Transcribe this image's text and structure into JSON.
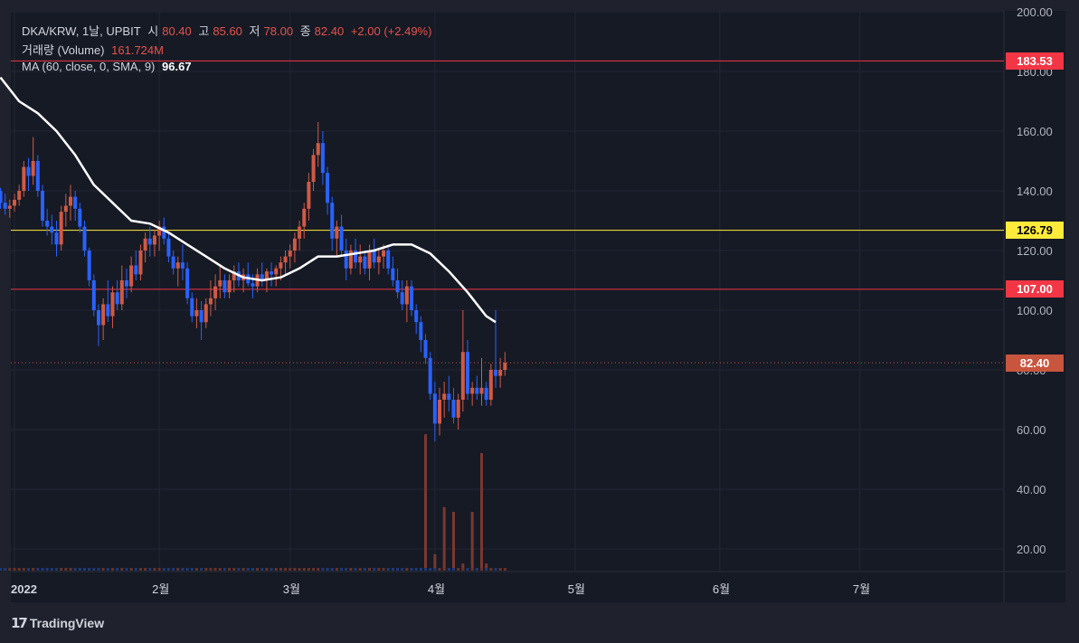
{
  "symbol_line": {
    "symbol": "DKA/KRW, 1날, UPBIT",
    "open_label": "시",
    "open_value": "80.40",
    "high_label": "고",
    "high_value": "85.60",
    "low_label": "저",
    "low_value": "78.00",
    "close_label": "종",
    "close_value": "82.40",
    "change": "+2.00 (+2.49%)"
  },
  "volume_line": {
    "label": "거래량 (Volume)",
    "value": "161.724M"
  },
  "ma_line": {
    "label": "MA (60, close, 0, SMA, 9)",
    "value": "96.67"
  },
  "price_tags": [
    {
      "label": "183.53",
      "color": "#f23645"
    },
    {
      "label": "126.79",
      "color": "#ffeb3b"
    },
    {
      "label": "107.00",
      "color": "#f23645"
    },
    {
      "label": "82.40",
      "color": "#c8553d"
    }
  ],
  "colors": {
    "up": "#d05a45",
    "down": "#2962ff",
    "ma": "#ffffff",
    "bg": "#161a25"
  },
  "footer": {
    "brand": "TradingView",
    "icon": "tradingview-logo-icon"
  },
  "chart_data": {
    "type": "candlestick",
    "ylim": [
      13,
      200
    ],
    "y_ticks": [
      "200.00",
      "180.00",
      "160.00",
      "140.00",
      "120.00",
      "100.00",
      "80.00",
      "60.00",
      "40.00",
      "20.00"
    ],
    "y_tick_values": [
      200,
      180,
      160,
      140,
      120,
      100,
      80,
      60,
      40,
      20
    ],
    "x_ticks": [
      "2022",
      "2월",
      "3월",
      "4월",
      "5월",
      "6월",
      "7월"
    ],
    "x_tick_days": [
      0,
      31,
      59,
      90,
      120,
      151,
      181
    ],
    "horizontal_lines": [
      {
        "value": 183.53,
        "color": "#f23645"
      },
      {
        "value": 126.79,
        "color": "#ffeb3b"
      },
      {
        "value": 107.0,
        "color": "#f23645"
      }
    ],
    "last_price": 82.4,
    "candles": [
      [
        -3,
        140,
        141,
        134,
        136
      ],
      [
        -2,
        136,
        139,
        132,
        134
      ],
      [
        -1,
        134,
        137,
        131,
        135
      ],
      [
        0,
        135,
        139,
        133,
        137
      ],
      [
        1,
        137,
        142,
        135,
        140
      ],
      [
        2,
        140,
        150,
        138,
        148
      ],
      [
        3,
        148,
        151,
        140,
        145
      ],
      [
        4,
        145,
        158,
        142,
        150
      ],
      [
        5,
        150,
        152,
        138,
        140
      ],
      [
        6,
        140,
        142,
        128,
        130
      ],
      [
        7,
        130,
        134,
        125,
        128
      ],
      [
        8,
        128,
        132,
        122,
        126
      ],
      [
        9,
        126,
        130,
        118,
        122
      ],
      [
        10,
        122,
        135,
        120,
        133
      ],
      [
        11,
        133,
        139,
        128,
        135
      ],
      [
        12,
        135,
        142,
        130,
        138
      ],
      [
        13,
        138,
        140,
        130,
        134
      ],
      [
        14,
        134,
        136,
        126,
        128
      ],
      [
        15,
        128,
        130,
        118,
        120
      ],
      [
        16,
        120,
        121,
        108,
        110
      ],
      [
        17,
        110,
        112,
        98,
        100
      ],
      [
        18,
        100,
        102,
        88,
        95
      ],
      [
        19,
        95,
        104,
        90,
        102
      ],
      [
        20,
        102,
        110,
        96,
        98
      ],
      [
        21,
        98,
        108,
        94,
        106
      ],
      [
        22,
        106,
        110,
        100,
        102
      ],
      [
        23,
        102,
        115,
        100,
        110
      ],
      [
        24,
        110,
        114,
        104,
        108
      ],
      [
        25,
        108,
        118,
        106,
        115
      ],
      [
        26,
        115,
        120,
        110,
        112
      ],
      [
        27,
        112,
        122,
        110,
        120
      ],
      [
        28,
        120,
        126,
        116,
        124
      ],
      [
        29,
        124,
        128,
        118,
        122
      ],
      [
        30,
        122,
        127,
        118,
        125
      ],
      [
        31,
        125,
        130,
        120,
        128
      ],
      [
        32,
        128,
        131,
        122,
        124
      ],
      [
        33,
        124,
        126,
        116,
        118
      ],
      [
        34,
        118,
        120,
        112,
        114
      ],
      [
        35,
        114,
        118,
        108,
        116
      ],
      [
        36,
        116,
        122,
        110,
        114
      ],
      [
        37,
        114,
        116,
        102,
        104
      ],
      [
        38,
        104,
        106,
        96,
        98
      ],
      [
        39,
        98,
        104,
        94,
        100
      ],
      [
        40,
        100,
        103,
        90,
        96
      ],
      [
        41,
        96,
        104,
        94,
        102
      ],
      [
        42,
        102,
        110,
        98,
        104
      ],
      [
        43,
        104,
        112,
        100,
        108
      ],
      [
        44,
        108,
        115,
        104,
        110
      ],
      [
        45,
        110,
        112,
        104,
        106
      ],
      [
        46,
        106,
        112,
        104,
        110
      ],
      [
        47,
        110,
        115,
        106,
        113
      ],
      [
        48,
        113,
        116,
        108,
        110
      ],
      [
        49,
        110,
        114,
        106,
        112
      ],
      [
        50,
        112,
        116,
        108,
        109
      ],
      [
        51,
        109,
        112,
        104,
        108
      ],
      [
        52,
        108,
        114,
        106,
        112
      ],
      [
        53,
        112,
        116,
        108,
        110
      ],
      [
        54,
        110,
        114,
        106,
        113
      ],
      [
        55,
        113,
        116,
        108,
        112
      ],
      [
        56,
        112,
        115,
        108,
        114
      ],
      [
        57,
        114,
        118,
        110,
        116
      ],
      [
        58,
        116,
        120,
        112,
        118
      ],
      [
        59,
        118,
        122,
        114,
        120
      ],
      [
        60,
        120,
        126,
        116,
        124
      ],
      [
        61,
        124,
        130,
        120,
        128
      ],
      [
        62,
        128,
        136,
        124,
        134
      ],
      [
        63,
        134,
        146,
        130,
        143
      ],
      [
        64,
        143,
        154,
        140,
        152
      ],
      [
        65,
        152,
        163,
        148,
        156
      ],
      [
        66,
        156,
        160,
        142,
        146
      ],
      [
        67,
        146,
        148,
        132,
        136
      ],
      [
        68,
        136,
        138,
        120,
        124
      ],
      [
        69,
        124,
        130,
        118,
        128
      ],
      [
        70,
        128,
        132,
        118,
        120
      ],
      [
        71,
        120,
        124,
        110,
        114
      ],
      [
        72,
        114,
        122,
        112,
        120
      ],
      [
        73,
        120,
        124,
        114,
        116
      ],
      [
        74,
        116,
        122,
        112,
        118
      ],
      [
        75,
        118,
        120,
        112,
        114
      ],
      [
        76,
        114,
        122,
        110,
        120
      ],
      [
        77,
        120,
        124,
        114,
        116
      ],
      [
        78,
        116,
        120,
        112,
        118
      ],
      [
        79,
        118,
        122,
        114,
        120
      ],
      [
        80,
        120,
        122,
        112,
        114
      ],
      [
        81,
        114,
        118,
        108,
        110
      ],
      [
        82,
        110,
        114,
        104,
        106
      ],
      [
        83,
        106,
        110,
        100,
        102
      ],
      [
        84,
        102,
        110,
        96,
        108
      ],
      [
        85,
        108,
        110,
        98,
        100
      ],
      [
        86,
        100,
        102,
        92,
        96
      ],
      [
        87,
        96,
        98,
        86,
        90
      ],
      [
        88,
        90,
        92,
        82,
        84
      ],
      [
        89,
        84,
        86,
        70,
        72
      ],
      [
        90,
        72,
        76,
        56,
        62
      ],
      [
        91,
        62,
        74,
        58,
        70
      ],
      [
        92,
        70,
        76,
        64,
        72
      ],
      [
        93,
        72,
        78,
        66,
        70
      ],
      [
        94,
        70,
        74,
        62,
        64
      ],
      [
        95,
        64,
        72,
        60,
        70
      ],
      [
        96,
        70,
        100,
        66,
        86
      ],
      [
        97,
        86,
        90,
        70,
        72
      ],
      [
        98,
        72,
        76,
        68,
        74
      ],
      [
        99,
        74,
        78,
        70,
        72
      ],
      [
        100,
        72,
        84,
        68,
        74
      ],
      [
        101,
        74,
        76,
        68,
        70
      ],
      [
        102,
        70,
        82,
        68,
        80
      ],
      [
        103,
        80,
        100,
        74,
        78
      ],
      [
        104,
        78,
        84,
        74,
        80
      ],
      [
        105,
        80,
        86,
        78,
        82.4
      ]
    ],
    "volume_ylim": [
      0,
      62
    ],
    "volume": [
      [
        88,
        58
      ],
      [
        90,
        7
      ],
      [
        92,
        27
      ],
      [
        94,
        25
      ],
      [
        98,
        25
      ],
      [
        100,
        50
      ],
      [
        101,
        3
      ],
      [
        96,
        3
      ]
    ],
    "ma": {
      "name": "MA (60, close, 0, SMA, 9)",
      "points": [
        [
          -3,
          178
        ],
        [
          1,
          170
        ],
        [
          5,
          166
        ],
        [
          9,
          160
        ],
        [
          13,
          152
        ],
        [
          17,
          142
        ],
        [
          21,
          136
        ],
        [
          25,
          130
        ],
        [
          29,
          129
        ],
        [
          33,
          126
        ],
        [
          37,
          122
        ],
        [
          41,
          118
        ],
        [
          45,
          114
        ],
        [
          49,
          111
        ],
        [
          53,
          110
        ],
        [
          57,
          111
        ],
        [
          61,
          114
        ],
        [
          65,
          118
        ],
        [
          69,
          118
        ],
        [
          73,
          119
        ],
        [
          77,
          120
        ],
        [
          81,
          122
        ],
        [
          85,
          122
        ],
        [
          89,
          119
        ],
        [
          93,
          113
        ],
        [
          97,
          106
        ],
        [
          101,
          98
        ],
        [
          103,
          96
        ]
      ]
    }
  }
}
